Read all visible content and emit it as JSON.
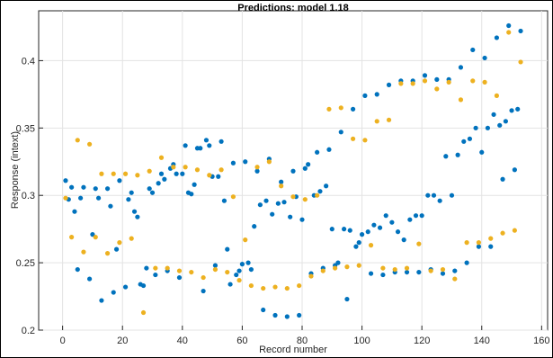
{
  "chart_data": {
    "type": "scatter",
    "title": "Predictions: model 1.18",
    "xlabel": "Record number",
    "ylabel": "Response (intext)",
    "xlim": [
      -8,
      162
    ],
    "ylim": [
      0.2,
      0.437
    ],
    "xticks": [
      0,
      20,
      40,
      60,
      80,
      100,
      120,
      140,
      160
    ],
    "yticks": [
      0.2,
      0.25,
      0.3,
      0.35,
      0.4
    ],
    "ytick_labels": [
      "0.2",
      "0.25",
      "0.3",
      "0.35",
      "0.4"
    ],
    "grid": true,
    "legend": "none",
    "series": [
      {
        "color": "#0072BD",
        "x": [
          1,
          3,
          5,
          7,
          9,
          11,
          12,
          13,
          15,
          17,
          19,
          21,
          23,
          25,
          26,
          27,
          29,
          31,
          33,
          35,
          37,
          39,
          41,
          43,
          45,
          47,
          49,
          51,
          53,
          55,
          57,
          59,
          61,
          63,
          65,
          67,
          69,
          71,
          73,
          75,
          77,
          79,
          81,
          83,
          85,
          87,
          89,
          91,
          93,
          95,
          97,
          99,
          101,
          103,
          105,
          107,
          109,
          111,
          113,
          115,
          117,
          119,
          121,
          123,
          125,
          127,
          129,
          131,
          133,
          135,
          137,
          139,
          141,
          143,
          145,
          147,
          149,
          151,
          153
        ],
        "y": [
          0.311,
          0.306,
          0.245,
          0.306,
          0.238,
          0.305,
          0.298,
          0.222,
          0.305,
          0.228,
          0.311,
          0.232,
          0.302,
          0.284,
          0.234,
          0.233,
          0.305,
          0.241,
          0.316,
          0.244,
          0.323,
          0.239,
          0.337,
          0.301,
          0.335,
          0.229,
          0.337,
          0.248,
          0.34,
          0.26,
          0.324,
          0.244,
          0.325,
          0.245,
          0.318,
          0.215,
          0.327,
          0.211,
          0.31,
          0.21,
          0.318,
          0.211,
          0.32,
          0.242,
          0.332,
          0.246,
          0.334,
          0.248,
          0.347,
          0.223,
          0.364,
          0.265,
          0.374,
          0.242,
          0.375,
          0.241,
          0.382,
          0.243,
          0.385,
          0.243,
          0.385,
          0.243,
          0.389,
          0.245,
          0.386,
          0.242,
          0.386,
          0.244,
          0.395,
          0.25,
          0.408,
          0.262,
          0.402,
          0.262,
          0.417,
          0.312,
          0.426,
          0.319,
          0.422
        ],
        "x2": [
          2,
          4,
          6,
          10,
          16,
          18,
          22,
          24,
          28,
          30,
          32,
          34,
          36,
          38,
          40,
          42,
          44,
          46,
          48,
          50,
          52,
          54,
          56,
          58,
          60,
          62,
          64,
          66,
          68,
          70,
          72,
          74,
          76,
          78,
          80,
          82,
          84,
          86,
          88,
          90,
          92,
          94,
          96,
          98,
          100,
          102,
          104,
          106,
          108,
          110,
          112,
          114,
          116,
          118,
          120,
          122,
          124,
          126,
          128,
          130,
          132,
          134,
          136,
          138,
          140,
          142,
          144,
          146,
          148,
          150,
          152
        ],
        "y2": [
          0.297,
          0.288,
          0.298,
          0.271,
          0.292,
          0.26,
          0.297,
          0.288,
          0.246,
          0.302,
          0.309,
          0.312,
          0.32,
          0.316,
          0.316,
          0.302,
          0.308,
          0.335,
          0.341,
          0.314,
          0.314,
          0.296,
          0.234,
          0.241,
          0.249,
          0.25,
          0.277,
          0.293,
          0.296,
          0.286,
          0.294,
          0.295,
          0.284,
          0.299,
          0.282,
          0.323,
          0.3,
          0.303,
          0.307,
          0.275,
          0.25,
          0.275,
          0.274,
          0.262,
          0.271,
          0.273,
          0.278,
          0.276,
          0.285,
          0.28,
          0.273,
          0.267,
          0.282,
          0.285,
          0.285,
          0.3,
          0.3,
          0.296,
          0.329,
          0.3,
          0.33,
          0.34,
          0.342,
          0.35,
          0.332,
          0.35,
          0.36,
          0.352,
          0.355,
          0.363,
          0.364
        ]
      },
      {
        "color": "#EDB120",
        "x": [
          1,
          3,
          5,
          7,
          9,
          11,
          13,
          15,
          17,
          19,
          21,
          23,
          25,
          27,
          29,
          31,
          33,
          35,
          37,
          39,
          41,
          43,
          45,
          47,
          49,
          51,
          53,
          55,
          57,
          59,
          61,
          63,
          65,
          67,
          69,
          71,
          73,
          75,
          77,
          79,
          81,
          83,
          85,
          87,
          89,
          91,
          93,
          95,
          97,
          99,
          101,
          103,
          105,
          107,
          109,
          111,
          113,
          115,
          117,
          119,
          121,
          123,
          125,
          127,
          129,
          131,
          133,
          135,
          137,
          139,
          141,
          143,
          145,
          147,
          149,
          151,
          153
        ],
        "y": [
          0.298,
          0.269,
          0.341,
          0.258,
          0.338,
          0.269,
          0.316,
          0.257,
          0.316,
          0.265,
          0.316,
          0.268,
          0.315,
          0.213,
          0.318,
          0.246,
          0.328,
          0.246,
          0.321,
          0.244,
          0.321,
          0.243,
          0.319,
          0.239,
          0.315,
          0.245,
          0.319,
          0.243,
          0.299,
          0.237,
          0.267,
          0.233,
          0.321,
          0.231,
          0.325,
          0.232,
          0.307,
          0.231,
          0.299,
          0.233,
          0.297,
          0.24,
          0.3,
          0.244,
          0.364,
          0.246,
          0.365,
          0.247,
          0.342,
          0.248,
          0.341,
          0.263,
          0.355,
          0.246,
          0.356,
          0.245,
          0.383,
          0.246,
          0.383,
          0.264,
          0.385,
          0.244,
          0.379,
          0.245,
          0.384,
          0.238,
          0.371,
          0.265,
          0.385,
          0.265,
          0.384,
          0.268,
          0.374,
          0.272,
          0.421,
          0.274,
          0.399
        ]
      }
    ]
  }
}
